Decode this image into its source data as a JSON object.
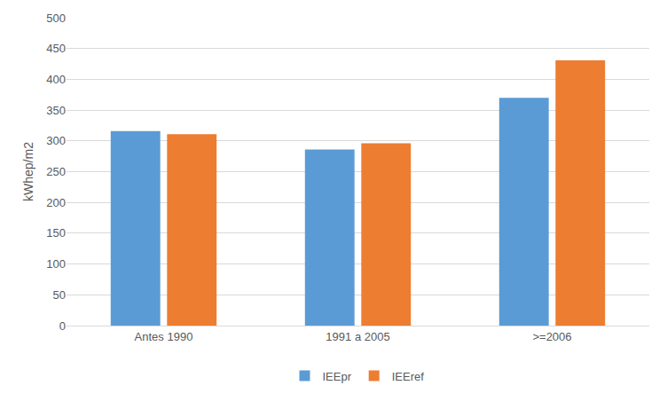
{
  "chart_data": {
    "type": "bar",
    "categories": [
      "Antes 1990",
      "1991 a 2005",
      ">=2006"
    ],
    "series": [
      {
        "name": "IEEpr",
        "color": "#5b9bd5",
        "values": [
          316,
          286,
          370
        ]
      },
      {
        "name": "IEEref",
        "color": "#ed7d31",
        "values": [
          311,
          296,
          431
        ]
      }
    ],
    "ylabel": "kWhep/m2",
    "ylim": [
      0,
      500
    ],
    "yticks": [
      0,
      50,
      100,
      150,
      200,
      250,
      300,
      350,
      400,
      450,
      500
    ],
    "grid": true,
    "legend": "bottom"
  }
}
